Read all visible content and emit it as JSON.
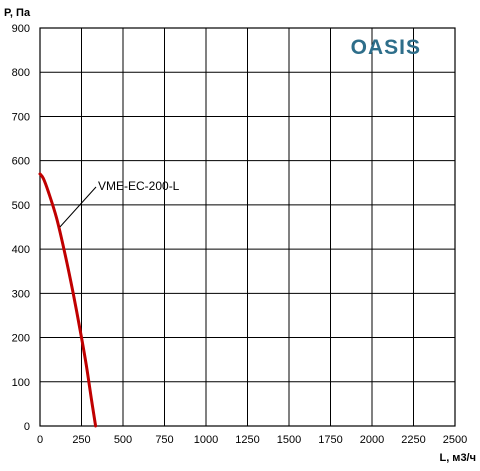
{
  "chart_data": {
    "type": "line",
    "title": "",
    "xlabel": "L, м3/ч",
    "ylabel": "P, Па",
    "xlim": [
      0,
      2500
    ],
    "ylim": [
      0,
      900
    ],
    "xticks": [
      "0",
      "250",
      "500",
      "750",
      "1000",
      "1250",
      "1500",
      "1750",
      "2000",
      "2250",
      "2500"
    ],
    "yticks": [
      "0",
      "100",
      "200",
      "300",
      "400",
      "500",
      "600",
      "700",
      "800",
      "900"
    ],
    "grid": true,
    "legend": "none",
    "series": [
      {
        "name": "VME-EC-200-L",
        "color": "#c00000",
        "x": [
          0,
          20,
          50,
          100,
          150,
          200,
          250,
          280,
          310,
          335
        ],
        "y": [
          570,
          560,
          530,
          470,
          390,
          300,
          200,
          135,
          60,
          0
        ]
      }
    ],
    "annotation": {
      "text": "VME-EC-200-L",
      "target": [
        120,
        450
      ]
    }
  },
  "brand": {
    "text": "OASIS",
    "color": "#2e6e8a"
  }
}
